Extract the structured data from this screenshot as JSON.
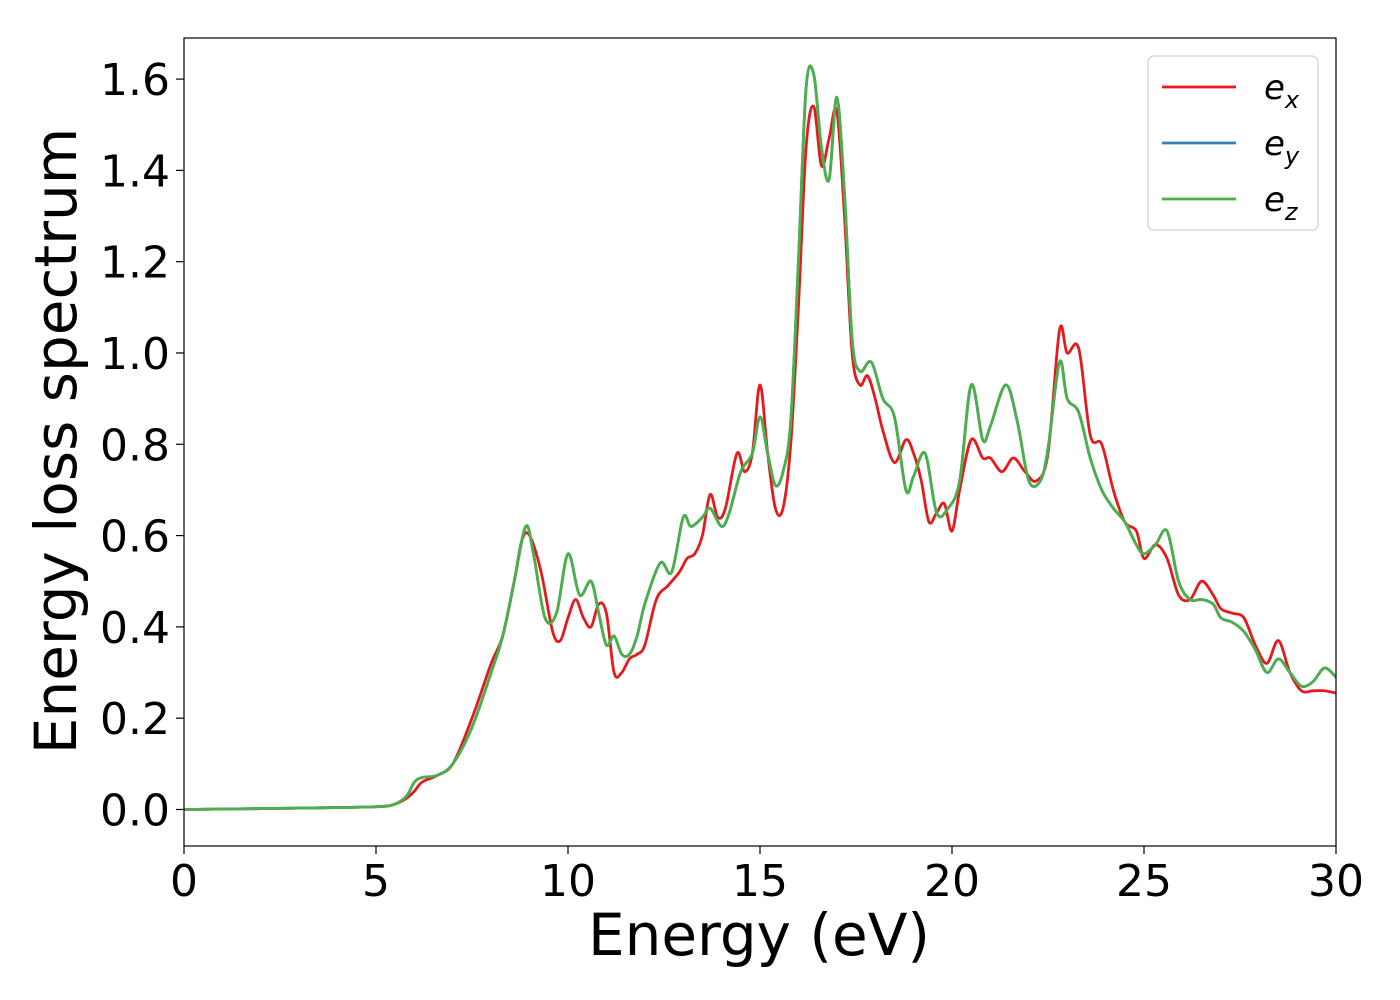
{
  "chart_data": {
    "type": "line",
    "xlabel": "Energy (eV)",
    "ylabel": "Energy loss spectrum",
    "xlim": [
      0,
      30
    ],
    "ylim": [
      -0.08,
      1.69
    ],
    "xticks": [
      0,
      5,
      10,
      15,
      20,
      25,
      30
    ],
    "xtick_labels": [
      "0",
      "5",
      "10",
      "15",
      "20",
      "25",
      "30"
    ],
    "yticks": [
      0.0,
      0.2,
      0.4,
      0.6,
      0.8,
      1.0,
      1.2,
      1.4,
      1.6
    ],
    "ytick_labels": [
      "0.0",
      "0.2",
      "0.4",
      "0.6",
      "0.8",
      "1.0",
      "1.2",
      "1.4",
      "1.6"
    ],
    "grid": false,
    "legend_position": "top-right",
    "series": [
      {
        "name": "e_x",
        "label_main": "e",
        "label_sub": "x",
        "color": "#e41a1c",
        "x": [
          0,
          3,
          5,
          5.5,
          5.8,
          6.0,
          6.2,
          6.6,
          7.0,
          7.5,
          8.0,
          8.3,
          8.6,
          8.8,
          9.0,
          9.3,
          9.6,
          9.8,
          10.0,
          10.2,
          10.4,
          10.6,
          10.8,
          11.0,
          11.2,
          11.4,
          11.6,
          11.8,
          12.0,
          12.3,
          12.6,
          12.9,
          13.1,
          13.3,
          13.5,
          13.7,
          13.9,
          14.1,
          14.4,
          14.6,
          14.8,
          15.0,
          15.2,
          15.4,
          15.6,
          15.8,
          16.0,
          16.2,
          16.4,
          16.6,
          16.8,
          17.0,
          17.2,
          17.4,
          17.6,
          17.8,
          18.0,
          18.2,
          18.5,
          18.8,
          19.0,
          19.2,
          19.4,
          19.6,
          19.8,
          20.0,
          20.2,
          20.5,
          20.8,
          21.0,
          21.3,
          21.6,
          21.9,
          22.2,
          22.5,
          22.8,
          23.0,
          23.3,
          23.6,
          23.9,
          24.2,
          24.5,
          24.8,
          25.0,
          25.3,
          25.6,
          25.9,
          26.2,
          26.5,
          26.8,
          27.0,
          27.3,
          27.6,
          27.9,
          28.2,
          28.5,
          28.8,
          29.1,
          29.4,
          29.7,
          30
        ],
        "y": [
          0,
          0.003,
          0.006,
          0.012,
          0.025,
          0.04,
          0.06,
          0.075,
          0.1,
          0.2,
          0.32,
          0.38,
          0.5,
          0.59,
          0.6,
          0.52,
          0.39,
          0.37,
          0.42,
          0.46,
          0.42,
          0.4,
          0.45,
          0.43,
          0.3,
          0.3,
          0.33,
          0.34,
          0.36,
          0.46,
          0.49,
          0.52,
          0.55,
          0.56,
          0.6,
          0.69,
          0.64,
          0.66,
          0.78,
          0.74,
          0.78,
          0.93,
          0.78,
          0.66,
          0.66,
          0.8,
          1.1,
          1.45,
          1.54,
          1.41,
          1.47,
          1.53,
          1.3,
          1.0,
          0.93,
          0.95,
          0.9,
          0.83,
          0.76,
          0.81,
          0.78,
          0.72,
          0.63,
          0.65,
          0.67,
          0.61,
          0.7,
          0.81,
          0.77,
          0.77,
          0.74,
          0.77,
          0.74,
          0.72,
          0.78,
          1.05,
          1.0,
          1.01,
          0.82,
          0.8,
          0.7,
          0.63,
          0.61,
          0.55,
          0.58,
          0.55,
          0.47,
          0.46,
          0.5,
          0.47,
          0.44,
          0.43,
          0.42,
          0.36,
          0.32,
          0.37,
          0.3,
          0.26,
          0.26,
          0.26,
          0.255
        ]
      },
      {
        "name": "e_y",
        "label_main": "e",
        "label_sub": "y",
        "color": "#377eb8",
        "x": [
          0,
          3,
          5,
          5.5,
          5.8,
          6.0,
          6.2,
          6.6,
          7.0,
          7.5,
          8.0,
          8.3,
          8.6,
          8.9,
          9.1,
          9.4,
          9.7,
          10.0,
          10.3,
          10.6,
          10.8,
          11.0,
          11.2,
          11.4,
          11.6,
          11.8,
          12.0,
          12.4,
          12.7,
          13.0,
          13.2,
          13.5,
          13.7,
          14.0,
          14.2,
          14.5,
          14.8,
          15.0,
          15.2,
          15.4,
          15.6,
          15.8,
          16.0,
          16.2,
          16.4,
          16.6,
          16.8,
          17.0,
          17.2,
          17.4,
          17.6,
          17.9,
          18.2,
          18.5,
          18.8,
          19.0,
          19.3,
          19.6,
          19.9,
          20.2,
          20.5,
          20.8,
          21.0,
          21.4,
          21.7,
          22.0,
          22.3,
          22.5,
          22.8,
          23.0,
          23.3,
          23.6,
          23.9,
          24.2,
          24.5,
          24.8,
          25.0,
          25.3,
          25.6,
          25.9,
          26.2,
          26.5,
          26.8,
          27.0,
          27.3,
          27.6,
          27.9,
          28.2,
          28.5,
          28.8,
          29.1,
          29.4,
          29.7,
          30
        ],
        "y": [
          0,
          0.003,
          0.006,
          0.012,
          0.03,
          0.06,
          0.07,
          0.075,
          0.1,
          0.18,
          0.3,
          0.38,
          0.5,
          0.62,
          0.56,
          0.42,
          0.43,
          0.56,
          0.47,
          0.5,
          0.43,
          0.36,
          0.38,
          0.34,
          0.34,
          0.38,
          0.45,
          0.54,
          0.52,
          0.64,
          0.62,
          0.64,
          0.66,
          0.62,
          0.65,
          0.74,
          0.78,
          0.86,
          0.78,
          0.71,
          0.74,
          0.85,
          1.2,
          1.58,
          1.61,
          1.45,
          1.38,
          1.56,
          1.35,
          1.03,
          0.96,
          0.98,
          0.9,
          0.86,
          0.7,
          0.73,
          0.78,
          0.65,
          0.66,
          0.72,
          0.93,
          0.81,
          0.84,
          0.93,
          0.85,
          0.72,
          0.72,
          0.79,
          0.98,
          0.9,
          0.87,
          0.77,
          0.7,
          0.66,
          0.63,
          0.58,
          0.56,
          0.58,
          0.61,
          0.5,
          0.46,
          0.46,
          0.45,
          0.42,
          0.41,
          0.39,
          0.35,
          0.3,
          0.33,
          0.3,
          0.27,
          0.28,
          0.31,
          0.29
        ]
      },
      {
        "name": "e_z",
        "label_main": "e",
        "label_sub": "z",
        "color": "#4daf4a",
        "x": [
          0,
          3,
          5,
          5.5,
          5.8,
          6.0,
          6.2,
          6.6,
          7.0,
          7.5,
          8.0,
          8.3,
          8.6,
          8.9,
          9.1,
          9.4,
          9.7,
          10.0,
          10.3,
          10.6,
          10.8,
          11.0,
          11.2,
          11.4,
          11.6,
          11.8,
          12.0,
          12.4,
          12.7,
          13.0,
          13.2,
          13.5,
          13.7,
          14.0,
          14.2,
          14.5,
          14.8,
          15.0,
          15.2,
          15.4,
          15.6,
          15.8,
          16.0,
          16.2,
          16.4,
          16.6,
          16.8,
          17.0,
          17.2,
          17.4,
          17.6,
          17.9,
          18.2,
          18.5,
          18.8,
          19.0,
          19.3,
          19.6,
          19.9,
          20.2,
          20.5,
          20.8,
          21.0,
          21.4,
          21.7,
          22.0,
          22.3,
          22.5,
          22.8,
          23.0,
          23.3,
          23.6,
          23.9,
          24.2,
          24.5,
          24.8,
          25.0,
          25.3,
          25.6,
          25.9,
          26.2,
          26.5,
          26.8,
          27.0,
          27.3,
          27.6,
          27.9,
          28.2,
          28.5,
          28.8,
          29.1,
          29.4,
          29.7,
          30
        ],
        "y": [
          0,
          0.003,
          0.006,
          0.012,
          0.03,
          0.06,
          0.07,
          0.075,
          0.1,
          0.18,
          0.3,
          0.38,
          0.5,
          0.62,
          0.56,
          0.42,
          0.43,
          0.56,
          0.47,
          0.5,
          0.43,
          0.36,
          0.38,
          0.34,
          0.34,
          0.38,
          0.45,
          0.54,
          0.52,
          0.64,
          0.62,
          0.64,
          0.66,
          0.62,
          0.65,
          0.74,
          0.78,
          0.86,
          0.78,
          0.71,
          0.74,
          0.85,
          1.2,
          1.58,
          1.61,
          1.45,
          1.38,
          1.56,
          1.35,
          1.03,
          0.96,
          0.98,
          0.9,
          0.86,
          0.7,
          0.73,
          0.78,
          0.65,
          0.66,
          0.72,
          0.93,
          0.81,
          0.84,
          0.93,
          0.85,
          0.72,
          0.72,
          0.79,
          0.98,
          0.9,
          0.87,
          0.77,
          0.7,
          0.66,
          0.63,
          0.58,
          0.56,
          0.58,
          0.61,
          0.5,
          0.46,
          0.46,
          0.45,
          0.42,
          0.41,
          0.39,
          0.35,
          0.3,
          0.33,
          0.3,
          0.27,
          0.28,
          0.31,
          0.29
        ]
      }
    ]
  }
}
